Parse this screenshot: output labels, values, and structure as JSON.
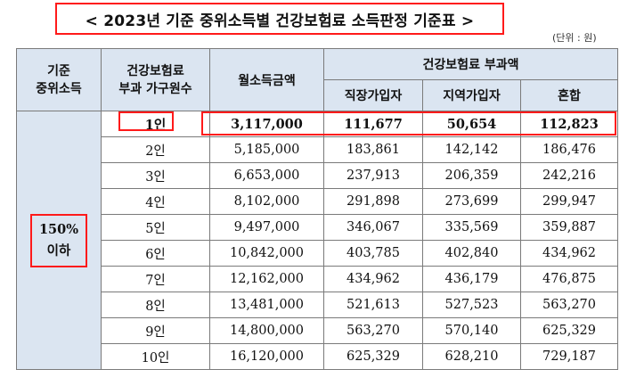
{
  "title": "< 2023년 기준 중위소득별 건강보험료 소득판정 기준표 >",
  "unit": "(단위 : 원)",
  "header": {
    "col1": [
      "기준",
      "중위소득"
    ],
    "col2": [
      "건강보험료",
      "부과 가구원수"
    ],
    "col3": "월소득금액",
    "group": "건강보험료 부과액",
    "sub": [
      "직장가입자",
      "지역가입자",
      "혼합"
    ]
  },
  "category": [
    "150%",
    "이하"
  ],
  "rows": [
    {
      "size": "1인",
      "income": "3,117,000",
      "work": "111,677",
      "region": "50,654",
      "mixed": "112,823"
    },
    {
      "size": "2인",
      "income": "5,185,000",
      "work": "183,861",
      "region": "142,142",
      "mixed": "186,476"
    },
    {
      "size": "3인",
      "income": "6,653,000",
      "work": "237,913",
      "region": "206,359",
      "mixed": "242,216"
    },
    {
      "size": "4인",
      "income": "8,102,000",
      "work": "291,898",
      "region": "273,699",
      "mixed": "299,947"
    },
    {
      "size": "5인",
      "income": "9,497,000",
      "work": "346,067",
      "region": "335,569",
      "mixed": "359,887"
    },
    {
      "size": "6인",
      "income": "10,842,000",
      "work": "403,785",
      "region": "402,840",
      "mixed": "434,962"
    },
    {
      "size": "7인",
      "income": "12,162,000",
      "work": "434,962",
      "region": "436,179",
      "mixed": "476,875"
    },
    {
      "size": "8인",
      "income": "13,481,000",
      "work": "521,613",
      "region": "527,523",
      "mixed": "563,270"
    },
    {
      "size": "9인",
      "income": "14,800,000",
      "work": "563,270",
      "region": "570,140",
      "mixed": "625,329"
    },
    {
      "size": "10인",
      "income": "16,120,000",
      "work": "625,329",
      "region": "628,210",
      "mixed": "729,187"
    }
  ],
  "colors": {
    "header_bg": "#dbe5f1",
    "highlight": "#ff1a1a"
  }
}
